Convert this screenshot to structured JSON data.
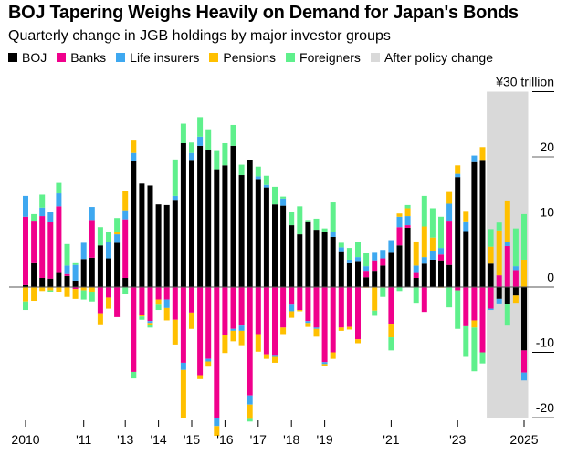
{
  "chart_data": {
    "type": "bar",
    "stacked": true,
    "title": "BOJ Tapering Weighs Heavily on Demand for Japan's Bonds",
    "subtitle": "Quarterly change in JGB holdings by major investor groups",
    "ylabel": "¥ trillion",
    "y_unit_label": "¥30 trillion",
    "ylim": [
      -20,
      30
    ],
    "yticks": [
      30,
      20,
      10,
      0,
      -10,
      -20
    ],
    "ytick_labels": [
      "¥30 trillion",
      "20",
      "10",
      "0",
      "-10",
      "-20"
    ],
    "xticks": [
      {
        "label": "2010",
        "quarter_index": 0
      },
      {
        "label": "'11",
        "quarter_index": 7
      },
      {
        "label": "'13",
        "quarter_index": 12
      },
      {
        "label": "'14",
        "quarter_index": 16
      },
      {
        "label": "'15",
        "quarter_index": 20
      },
      {
        "label": "'16",
        "quarter_index": 24
      },
      {
        "label": "'17",
        "quarter_index": 28
      },
      {
        "label": "'18",
        "quarter_index": 32
      },
      {
        "label": "'19",
        "quarter_index": 36
      },
      {
        "label": "'21",
        "quarter_index": 44
      },
      {
        "label": "'23",
        "quarter_index": 52
      },
      {
        "label": "2025",
        "quarter_index": 60
      }
    ],
    "x_start": "2010 Q1",
    "frequency": "quarterly",
    "shaded_region": {
      "label": "After policy change",
      "from_index": 56,
      "to_index": 60,
      "color": "#d9d9d9"
    },
    "legend_position": "top-left",
    "series": [
      {
        "name": "BOJ",
        "color": "#000000",
        "values": [
          0.3,
          3.8,
          1.4,
          1.3,
          2.3,
          1.7,
          1.0,
          4.3,
          4.5,
          6.4,
          4.4,
          6.8,
          1.4,
          19.3,
          15.9,
          15.6,
          12.7,
          12.6,
          13.4,
          22.1,
          19.4,
          21.7,
          21.0,
          18.1,
          18.7,
          21.7,
          17.2,
          19.5,
          16.6,
          15.3,
          12.7,
          12.5,
          9.5,
          8.1,
          10.1,
          8.8,
          8.5,
          7.7,
          5.5,
          3.8,
          4.0,
          1.5,
          2.5,
          3.3,
          5.4,
          6.4,
          9.1,
          1.4,
          3.6,
          4.2,
          4.1,
          3.4,
          16.9,
          8.6,
          19.2,
          19.4,
          3.6,
          -1.8,
          -2.6,
          -1.3,
          -9.7
        ]
      },
      {
        "name": "Banks",
        "color": "#f0008c",
        "values": [
          10.5,
          6.4,
          9.5,
          8.7,
          10.1,
          0.3,
          -0.3,
          0,
          5.8,
          -4.0,
          -1.6,
          -4.6,
          9.0,
          -13.0,
          -4.3,
          -5.2,
          -1.9,
          -1.9,
          -5.0,
          -11.6,
          -3.9,
          -13.5,
          -11.0,
          -20.0,
          -7.4,
          -6.4,
          -5.9,
          -16.6,
          -7.2,
          -10.3,
          -10.4,
          -6.2,
          -2.7,
          -3.5,
          -5.2,
          -6.2,
          -11.5,
          -10.0,
          -6.2,
          -6.1,
          -8.0,
          1.0,
          1.6,
          1.1,
          -5.6,
          2.8,
          0.4,
          0.9,
          -3.8,
          0,
          0.9,
          6.8,
          -0.5,
          -6.0,
          -5.1,
          -10.0,
          -3.3,
          1.8,
          6.3,
          2.6,
          -3.4
        ]
      },
      {
        "name": "Life insurers",
        "color": "#3ea8f0",
        "values": [
          3.2,
          0,
          1.3,
          1.6,
          2.0,
          1.3,
          2.4,
          2.5,
          2.0,
          0,
          2.5,
          1.3,
          1.4,
          1.3,
          0,
          -0.3,
          0,
          -1.3,
          0.6,
          -1.1,
          1.2,
          1.4,
          -0.4,
          -1.3,
          0,
          -0.3,
          -0.8,
          -1.4,
          0.4,
          0.4,
          -0.3,
          1.1,
          -1.0,
          0,
          -0.3,
          -0.2,
          -0.3,
          0.8,
          0.6,
          0.4,
          0.6,
          0.7,
          1.3,
          1.3,
          1.8,
          1.6,
          1.4,
          1.0,
          1.0,
          1.4,
          1.0,
          2.6,
          0.5,
          1.5,
          1.0,
          0,
          -0.2,
          -0.7,
          0.6,
          0.6,
          -1.2
        ]
      },
      {
        "name": "Pensions",
        "color": "#ffc000",
        "values": [
          -2.2,
          -2.1,
          -0.6,
          -0.5,
          -0.7,
          -1.5,
          -1.5,
          -0.5,
          -0.7,
          -1.7,
          -1.7,
          0.3,
          3.0,
          1.9,
          -0.2,
          -0.3,
          -0.8,
          -1.9,
          -3.8,
          -7.3,
          -2.5,
          -0.6,
          -0.8,
          -1.5,
          -2.7,
          -1.6,
          -2.2,
          -2.2,
          -2.7,
          -0.7,
          -0.9,
          -1.0,
          -1.0,
          -0.2,
          -0.6,
          -1.2,
          -0.3,
          -1.0,
          -0.5,
          -0.4,
          -0.6,
          -0.1,
          -3.6,
          -0.1,
          -2.1,
          0.5,
          1.2,
          3.7,
          4.7,
          2.0,
          -0.1,
          1.8,
          1.3,
          1.6,
          -1.1,
          2.1,
          2.6,
          6.9,
          6.4,
          -1.1,
          4.2
        ]
      },
      {
        "name": "Foreigners",
        "color": "#5ff08c",
        "values": [
          -1.3,
          1.0,
          2.0,
          -0.2,
          1.6,
          3.3,
          0.4,
          -1.4,
          -1.5,
          2.8,
          1.6,
          2.2,
          -1.1,
          -1.0,
          -0.5,
          -0.4,
          -0.8,
          0,
          5.6,
          3.0,
          1.6,
          3.0,
          3.1,
          2.8,
          3.4,
          3.2,
          1.6,
          -0.4,
          1.5,
          1.4,
          2.7,
          0.3,
          2.0,
          4.3,
          0.2,
          1.7,
          0.5,
          4.5,
          0.7,
          1.8,
          2.3,
          2.1,
          -0.8,
          -1.4,
          -2.0,
          -0.6,
          0.5,
          -2.4,
          4.7,
          4.5,
          4.8,
          -3.1,
          -5.9,
          -4.7,
          -6.7,
          -1.7,
          2.7,
          1.2,
          -3.3,
          5.8,
          7.0
        ]
      }
    ]
  }
}
